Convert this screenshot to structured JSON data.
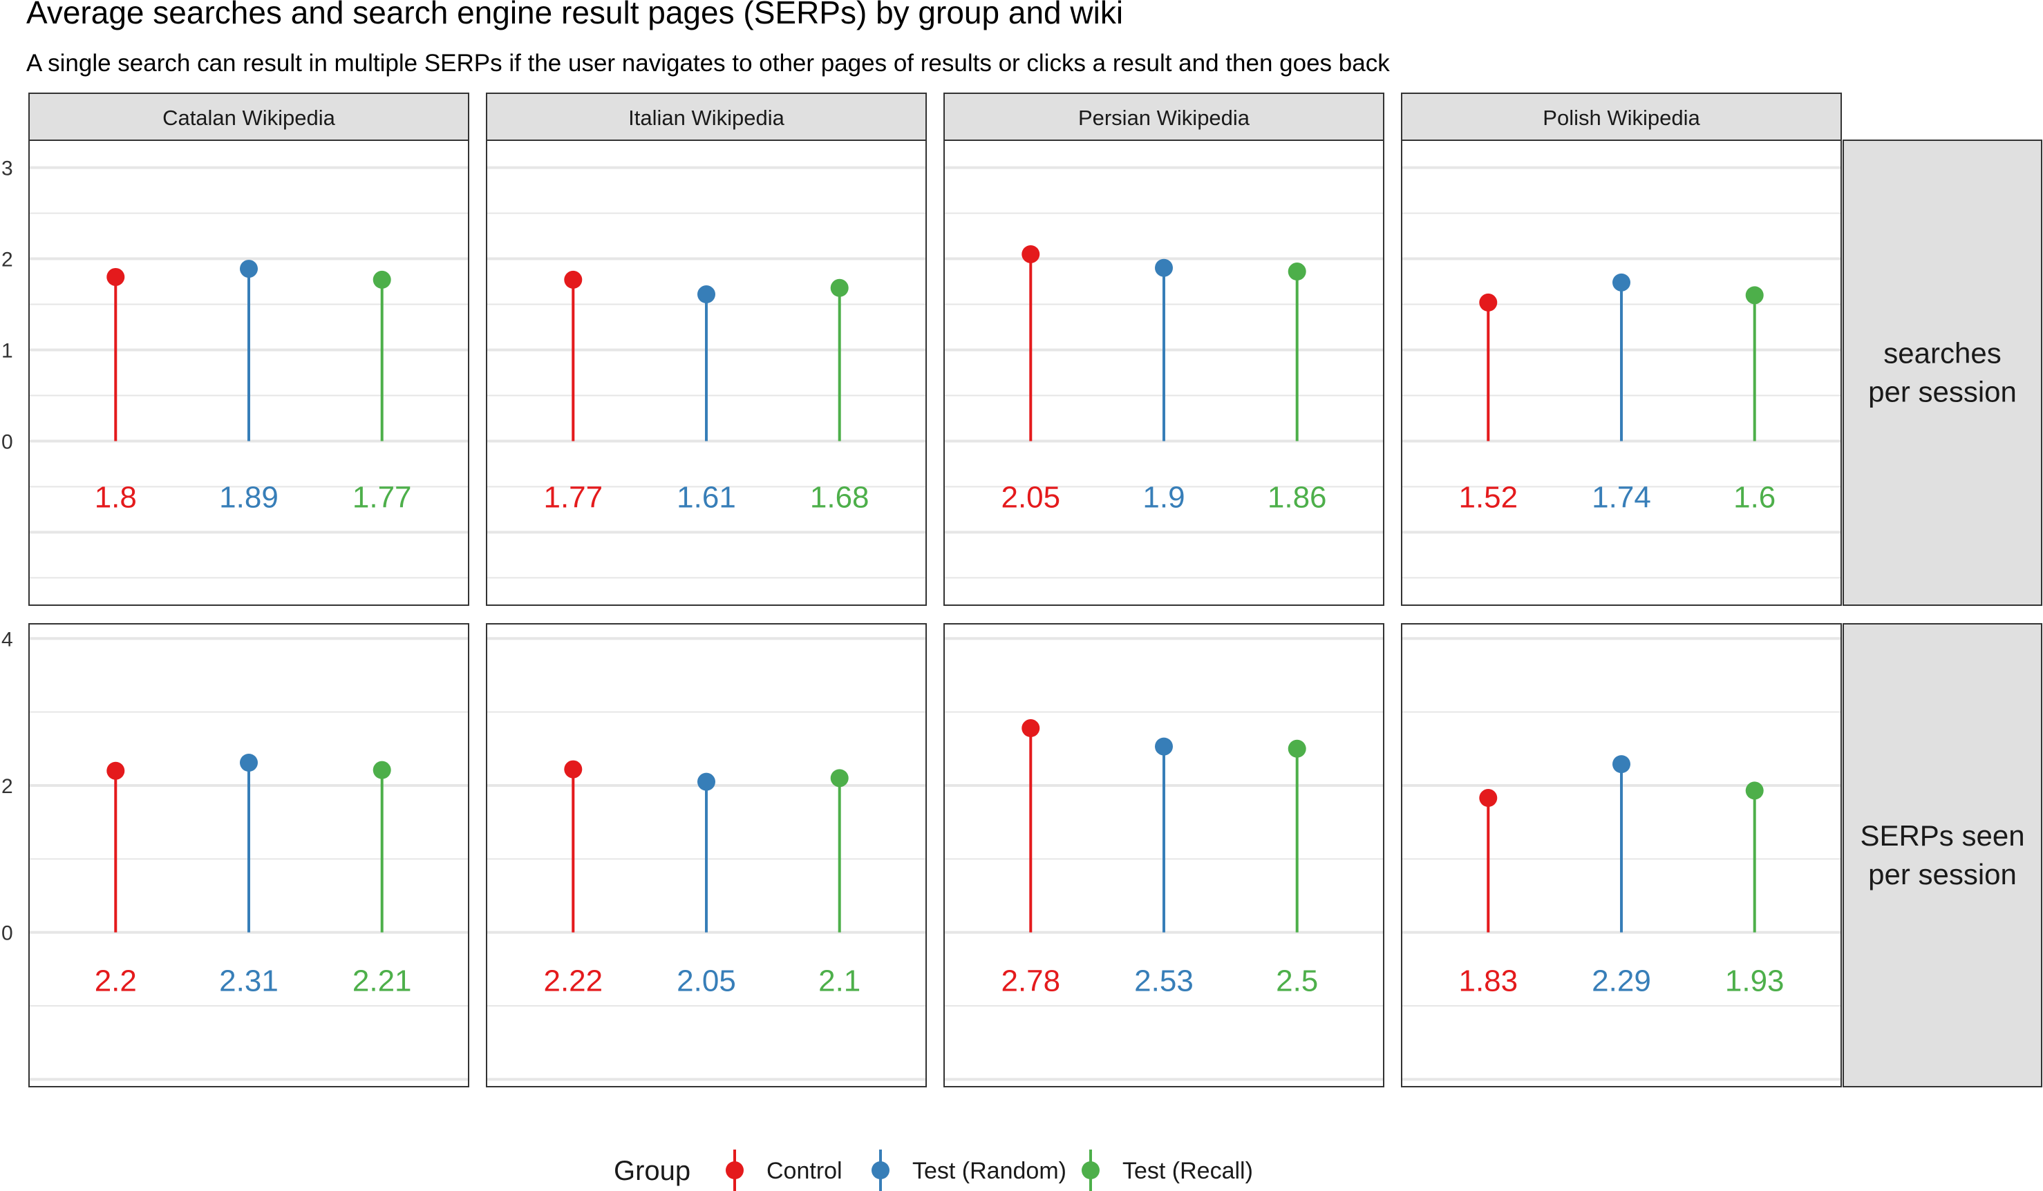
{
  "chart_data": {
    "type": "lollipop",
    "title": "Average searches and search engine result pages (SERPs) by group and wiki",
    "subtitle": "A single search can result in multiple SERPs if the user navigates to other pages of results or clicks a result and then goes back",
    "xlabel": "",
    "ylabel": "",
    "grid": true,
    "legend": {
      "title": "Group",
      "position": "bottom",
      "entries": [
        "Control",
        "Test (Random)",
        "Test (Recall)"
      ]
    },
    "groups": [
      "Control",
      "Test (Random)",
      "Test (Recall)"
    ],
    "colors": {
      "Control": "#E41A1C",
      "Test (Random)": "#377EB8",
      "Test (Recall)": "#4DAF4A"
    },
    "columns": [
      "Catalan Wikipedia",
      "Italian Wikipedia",
      "Persian Wikipedia",
      "Polish Wikipedia"
    ],
    "rows": [
      {
        "label": [
          "searches",
          "per session"
        ],
        "ylim": [
          -1.8,
          3.3
        ],
        "yticks": [
          0,
          1,
          2,
          3
        ],
        "ytick_labels": [
          "0",
          "1",
          "2",
          "3"
        ],
        "values": [
          [
            1.8,
            1.89,
            1.77
          ],
          [
            1.77,
            1.61,
            1.68
          ],
          [
            2.05,
            1.9,
            1.86
          ],
          [
            1.52,
            1.74,
            1.6
          ]
        ],
        "labels": [
          [
            "1.8",
            "1.89",
            "1.77"
          ],
          [
            "1.77",
            "1.61",
            "1.68"
          ],
          [
            "2.05",
            "1.9",
            "1.86"
          ],
          [
            "1.52",
            "1.74",
            "1.6"
          ]
        ]
      },
      {
        "label": [
          "SERPs seen",
          "per session"
        ],
        "ylim": [
          -2.1,
          4.2
        ],
        "yticks": [
          0,
          2,
          4
        ],
        "ytick_labels": [
          "0",
          "2",
          "4"
        ],
        "values": [
          [
            2.2,
            2.31,
            2.21
          ],
          [
            2.22,
            2.05,
            2.1
          ],
          [
            2.78,
            2.53,
            2.5
          ],
          [
            1.83,
            2.29,
            1.93
          ]
        ],
        "labels": [
          [
            "2.2",
            "2.31",
            "2.21"
          ],
          [
            "2.22",
            "2.05",
            "2.1"
          ],
          [
            "2.78",
            "2.53",
            "2.5"
          ],
          [
            "1.83",
            "2.29",
            "1.93"
          ]
        ]
      }
    ]
  }
}
